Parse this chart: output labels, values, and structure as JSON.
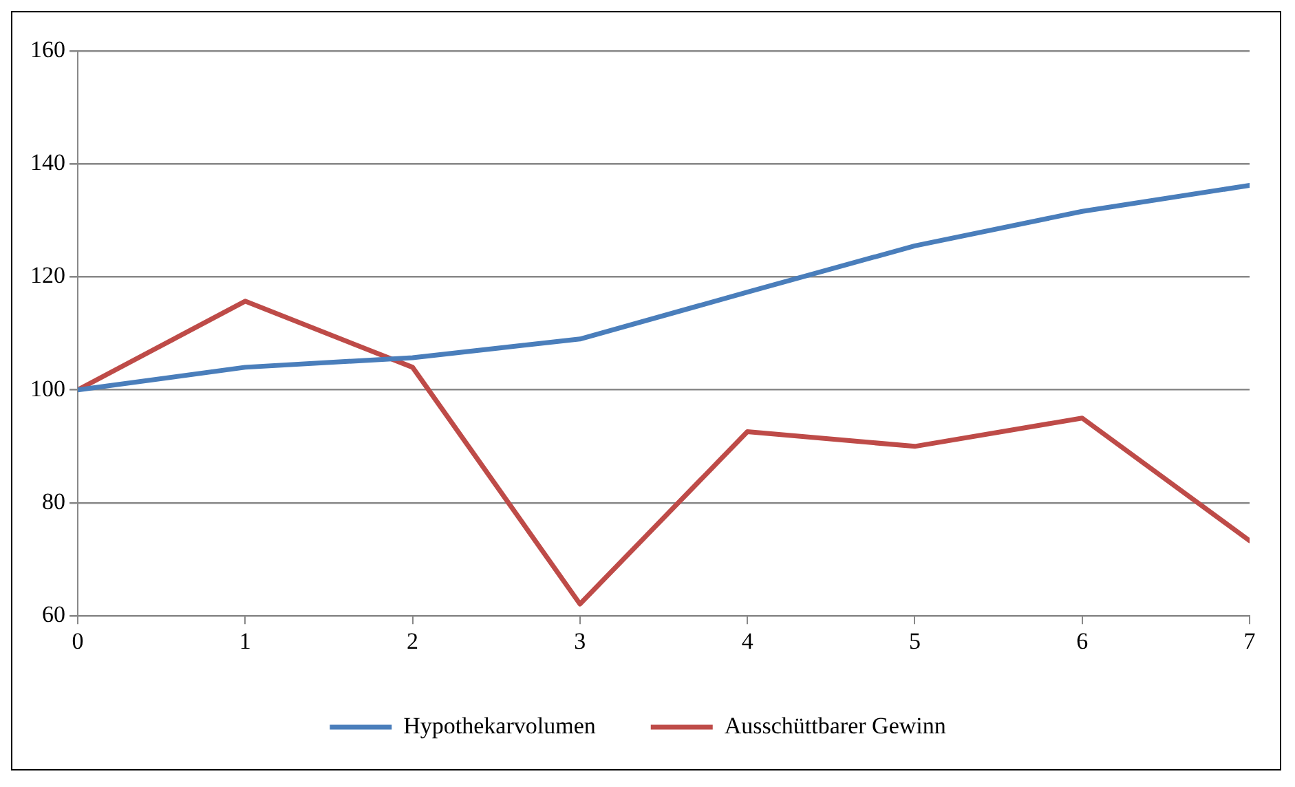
{
  "chart_data": {
    "type": "line",
    "x": [
      0,
      1,
      2,
      3,
      4,
      5,
      6,
      7
    ],
    "series": [
      {
        "name": "Hypothekarvolumen",
        "color": "#4a7ebb",
        "values": [
          100,
          104,
          105.7,
          109,
          117.3,
          125.5,
          131.6,
          136.2
        ]
      },
      {
        "name": "Ausschüttbarer Gewinn",
        "color": "#be4b48",
        "values": [
          100,
          115.7,
          104,
          62.1,
          92.6,
          90,
          95,
          73.3
        ]
      }
    ],
    "xlim": [
      0,
      7
    ],
    "xticks": [
      0,
      1,
      2,
      3,
      4,
      5,
      6,
      7
    ],
    "ylim": [
      60,
      160
    ],
    "yticks": [
      60,
      80,
      100,
      120,
      140,
      160
    ],
    "grid": "y",
    "legend": "bottom",
    "marker": "none",
    "line_style": "solid"
  }
}
